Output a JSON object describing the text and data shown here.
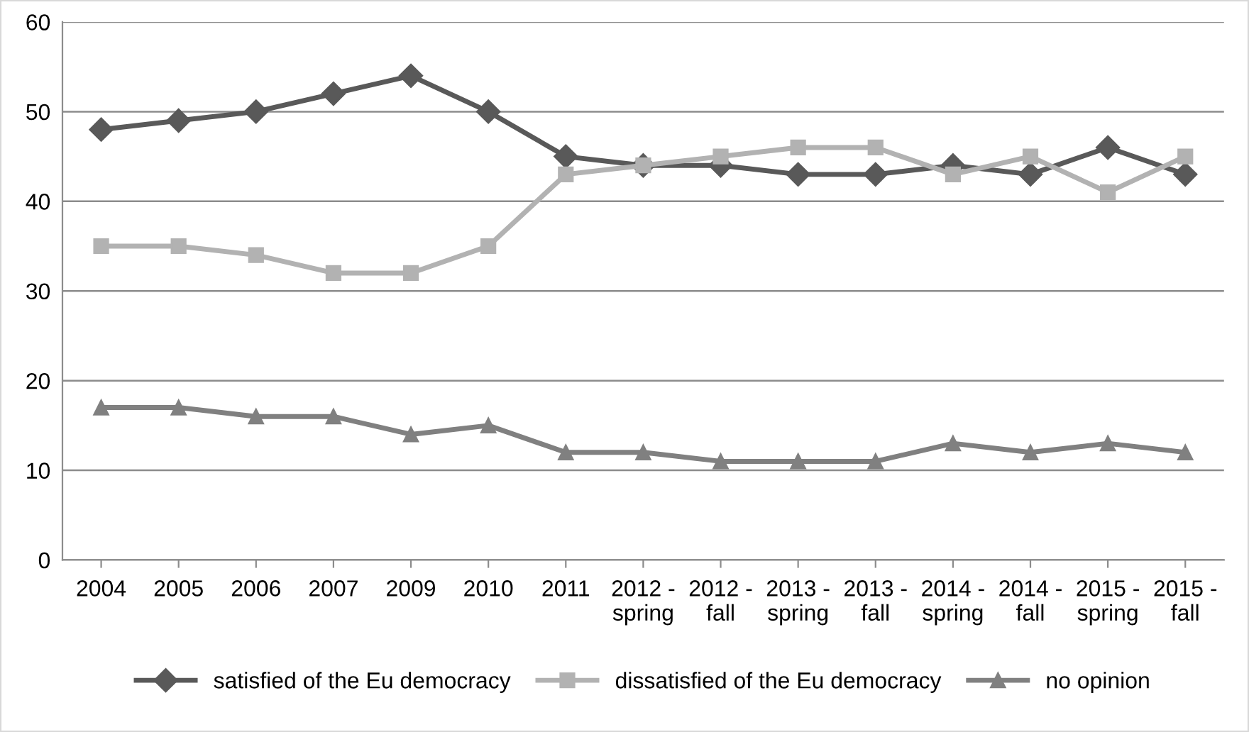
{
  "chart_data": {
    "type": "line",
    "categories": [
      "2004",
      "2005",
      "2006",
      "2007",
      "2009",
      "2010",
      "2011",
      "2012 -\nspring",
      "2012 -\nfall",
      "2013 -\nspring",
      "2013 -\nfall",
      "2014 -\nspring",
      "2014 -\nfall",
      "2015 -\nspring",
      "2015 -\nfall"
    ],
    "series": [
      {
        "name": "satisfied of the Eu democracy",
        "color": "#595959",
        "marker": "diamond",
        "values": [
          48,
          49,
          50,
          52,
          54,
          50,
          45,
          44,
          44,
          43,
          43,
          44,
          43,
          46,
          43
        ]
      },
      {
        "name": "dissatisfied of the Eu democracy",
        "color": "#b2b2b2",
        "marker": "square",
        "values": [
          35,
          35,
          34,
          32,
          32,
          35,
          43,
          44,
          45,
          46,
          46,
          43,
          45,
          41,
          45
        ]
      },
      {
        "name": "no opinion",
        "color": "#808080",
        "marker": "triangle",
        "values": [
          17,
          17,
          16,
          16,
          14,
          15,
          12,
          12,
          11,
          11,
          11,
          13,
          12,
          13,
          12
        ]
      }
    ],
    "ylim": [
      0,
      60
    ],
    "yticks": [
      0,
      10,
      20,
      30,
      40,
      50,
      60
    ],
    "grid": "y",
    "legend": "bottom",
    "line_style": "solid"
  }
}
